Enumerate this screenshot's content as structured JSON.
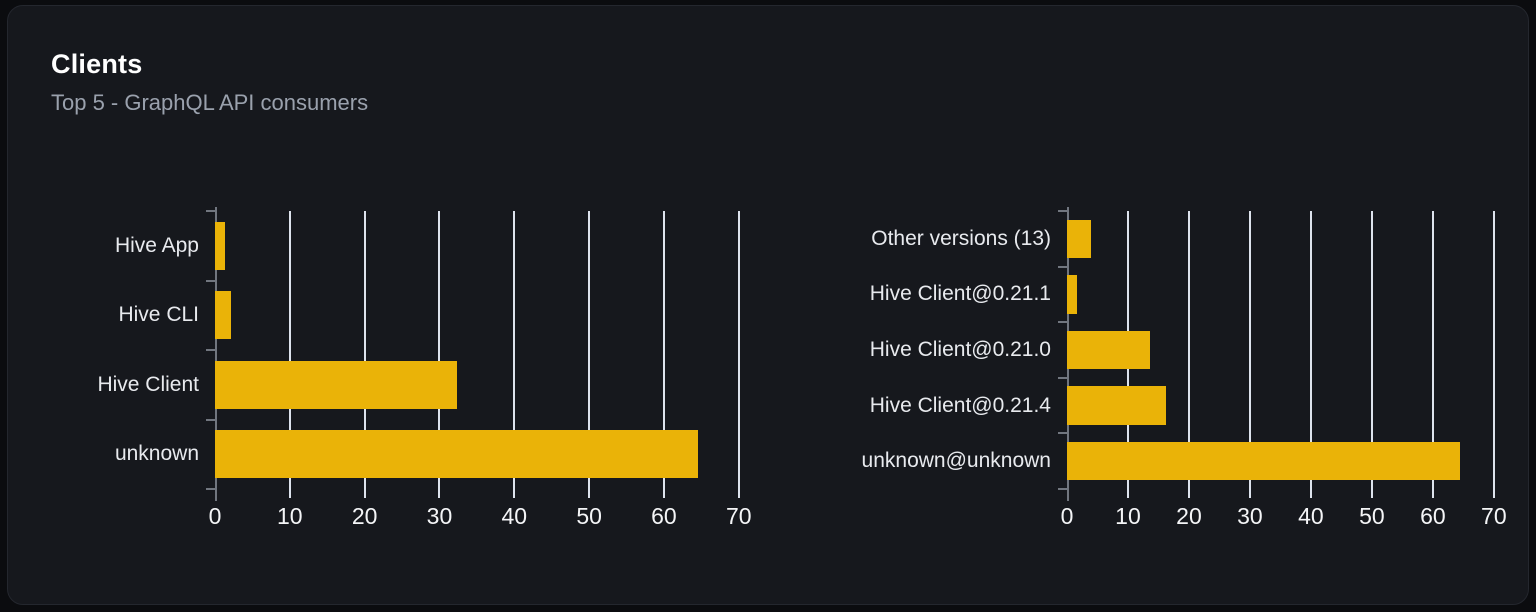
{
  "card": {
    "title": "Clients",
    "subtitle": "Top 5 - GraphQL API consumers"
  },
  "colors": {
    "page_background": "#0b0c0f",
    "card_background": "#16181d",
    "card_border": "#24272e",
    "bar": "#eab308",
    "gridline": "#dde3ed",
    "axis": "#71767f",
    "category_label": "#e8eaee",
    "tick_label": "#f4f5f7",
    "title": "#ffffff",
    "subtitle": "#9aa1ad"
  },
  "chart_data": [
    {
      "type": "bar",
      "name": "clients-by-name",
      "orientation": "horizontal",
      "categories": [
        "Hive App",
        "Hive CLI",
        "Hive Client",
        "unknown"
      ],
      "values": [
        1.3,
        2.1,
        32.4,
        64.5
      ],
      "x_ticks": [
        0,
        10,
        20,
        30,
        40,
        50,
        60,
        70
      ],
      "xlim": [
        0,
        71.5
      ],
      "grid": true,
      "legend": "none",
      "bar_color": "#eab308",
      "title": "",
      "xlabel": "",
      "ylabel": ""
    },
    {
      "type": "bar",
      "name": "clients-by-version",
      "orientation": "horizontal",
      "categories": [
        "Other versions (13)",
        "Hive Client@0.21.1",
        "Hive Client@0.21.0",
        "Hive Client@0.21.4",
        "unknown@unknown"
      ],
      "values": [
        3.9,
        1.7,
        13.6,
        16.3,
        64.5
      ],
      "x_ticks": [
        0,
        10,
        20,
        30,
        40,
        50,
        60,
        70
      ],
      "xlim": [
        0,
        71.5
      ],
      "grid": true,
      "legend": "none",
      "bar_color": "#eab308",
      "title": "",
      "xlabel": "",
      "ylabel": ""
    }
  ]
}
